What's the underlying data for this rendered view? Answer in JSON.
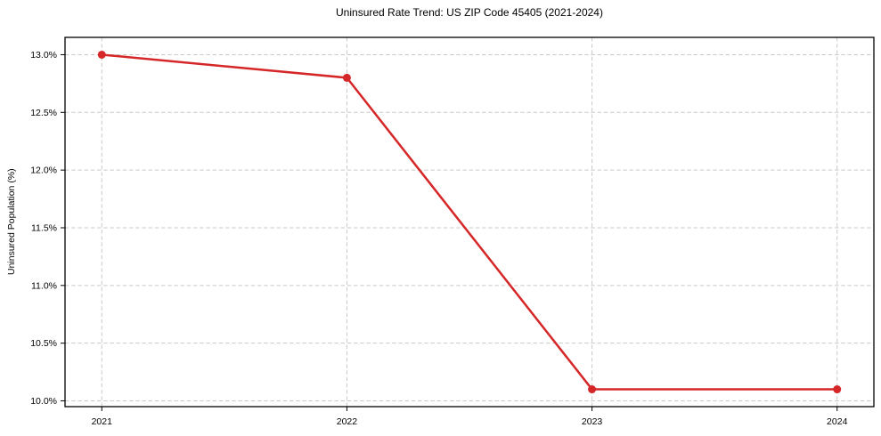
{
  "chart_data": {
    "type": "line",
    "title": "Uninsured Rate Trend: US ZIP Code 45405 (2021-2024)",
    "xlabel": "",
    "ylabel": "Uninsured Population (%)",
    "x": [
      2021,
      2022,
      2023,
      2024
    ],
    "series": [
      {
        "name": "uninsured-rate",
        "values": [
          13.0,
          12.8,
          10.1,
          10.1
        ],
        "color": "#d62728",
        "line_width": 2.5,
        "marker": "circle",
        "marker_size": 4.5
      }
    ],
    "xlim": [
      2020.85,
      2024.15
    ],
    "ylim": [
      9.95,
      13.15
    ],
    "xticks": {
      "values": [
        2021,
        2022,
        2023,
        2024
      ],
      "labels": [
        "2021",
        "2022",
        "2023",
        "2024"
      ]
    },
    "yticks": {
      "values": [
        10.0,
        10.5,
        11.0,
        11.5,
        12.0,
        12.5,
        13.0
      ],
      "labels": [
        "10.0%",
        "10.5%",
        "11.0%",
        "11.5%",
        "12.0%",
        "12.5%",
        "13.0%"
      ]
    },
    "grid": {
      "show": true,
      "style": "dashed",
      "color": "#c9c9c9"
    },
    "legend": {
      "show": false
    },
    "axes": {
      "spine_color": "#000000",
      "tick_color": "#000000"
    },
    "background": "#ffffff"
  }
}
